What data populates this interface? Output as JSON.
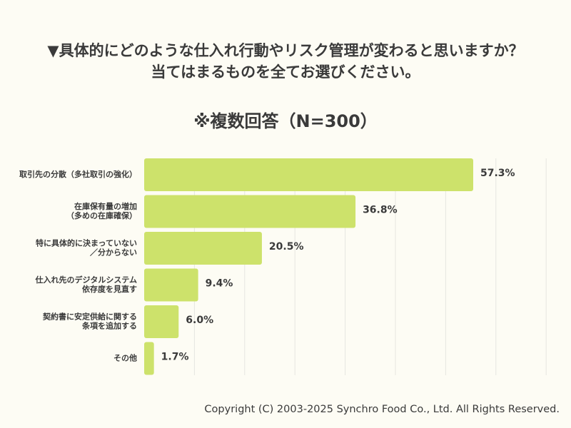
{
  "chart_data": {
    "type": "bar",
    "orientation": "horizontal",
    "title": "▼具体的にどのような仕入れ行動やリスク管理が変わると思いますか？\n当てはまるものを全てお選びください。",
    "title_lines": [
      "▼具体的にどのような仕入れ行動やリスク管理が変わると思いますか？",
      "当てはまるものを全てお選びください。"
    ],
    "subtitle": "※複数回答（N=300）",
    "categories": [
      [
        "取引先の分散（多社取引の強化）"
      ],
      [
        "在庫保有量の増加",
        "（多めの在庫確保）"
      ],
      [
        "特に具体的に決まっていない",
        "／分からない"
      ],
      [
        "仕入れ先のデジタルシステム",
        "依存度を見直す"
      ],
      [
        "契約書に安定供給に関する",
        "条項を追加する"
      ],
      [
        "その他"
      ]
    ],
    "values": [
      57.3,
      36.8,
      20.5,
      9.4,
      6.0,
      1.7
    ],
    "data_labels": [
      "57.3%",
      "36.8%",
      "20.5%",
      "9.4%",
      "6.0%",
      "1.7%"
    ],
    "unit": "%",
    "xlim": [
      0,
      70
    ],
    "grid": true,
    "bar_color": "#cde26b",
    "grid_color": "#e6e6e0"
  },
  "footer": "Copyright (C) 2003-2025  Synchro Food Co., Ltd. All Rights Reserved."
}
